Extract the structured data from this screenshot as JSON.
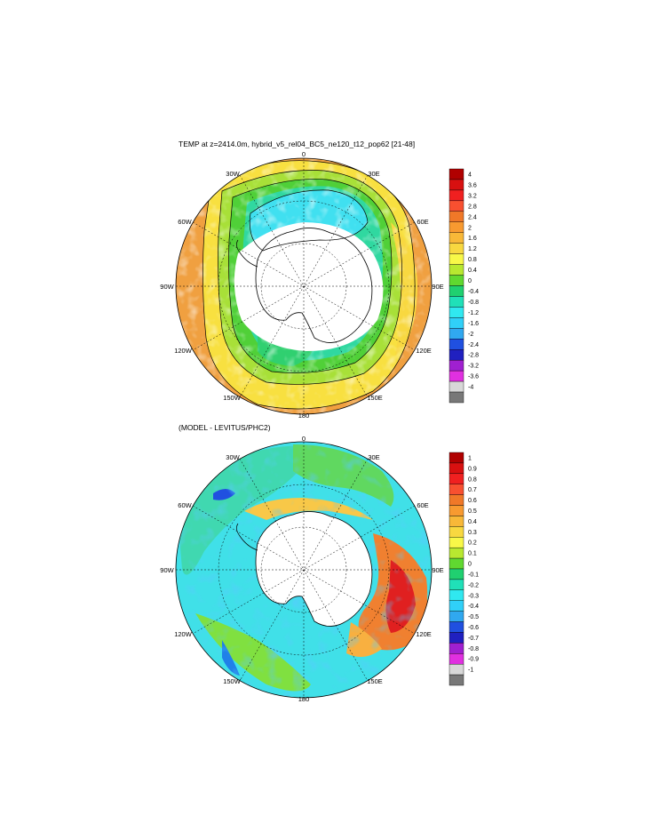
{
  "panels": [
    {
      "title": "TEMP at z=2414.0m, hybrid_v5_rel04_BC5_ne120_t12_pop62 [21-48]",
      "lon_labels": {
        "top": "0",
        "top_left": "30W",
        "top_right": "30E",
        "left_upper": "60W",
        "right_upper": "60E",
        "left": "90W",
        "right": "90E",
        "left_lower": "120W",
        "right_lower": "120E",
        "bottom_left": "150W",
        "bottom_right": "150E",
        "bottom": "180"
      },
      "colorbar": {
        "labels": [
          "4",
          "3.6",
          "3.2",
          "2.8",
          "2.4",
          "2",
          "1.6",
          "1.2",
          "0.8",
          "0.4",
          "0",
          "-0.4",
          "-0.8",
          "-1.2",
          "-1.6",
          "-2",
          "-2.4",
          "-2.8",
          "-3.2",
          "-3.6",
          "-4"
        ],
        "colors": [
          "#b00000",
          "#d81010",
          "#f02020",
          "#f85030",
          "#f07828",
          "#f89a30",
          "#f8b838",
          "#f8d840",
          "#f8f848",
          "#b8e830",
          "#60d830",
          "#20d070",
          "#20e0b8",
          "#30e8f0",
          "#30d0f8",
          "#30a8f0",
          "#2050e0",
          "#2020c0",
          "#a020d0",
          "#e030e0",
          "#d8d8d8",
          "#787878"
        ]
      }
    },
    {
      "title": "(MODEL - LEVITUS/PHC2)",
      "lon_labels": {
        "top": "0",
        "top_left": "30W",
        "top_right": "30E",
        "left_upper": "60W",
        "right_upper": "60E",
        "left": "90W",
        "right": "90E",
        "left_lower": "120W",
        "right_lower": "120E",
        "bottom_left": "150W",
        "bottom_right": "150E",
        "bottom": "180"
      },
      "colorbar": {
        "labels": [
          "1",
          "0.9",
          "0.8",
          "0.7",
          "0.6",
          "0.5",
          "0.4",
          "0.3",
          "0.2",
          "0.1",
          "0",
          "-0.1",
          "-0.2",
          "-0.3",
          "-0.4",
          "-0.5",
          "-0.6",
          "-0.7",
          "-0.8",
          "-0.9",
          "-1"
        ],
        "colors": [
          "#b00000",
          "#d81010",
          "#f02020",
          "#f85030",
          "#f07828",
          "#f89a30",
          "#f8b838",
          "#f8d840",
          "#f8f848",
          "#b8e830",
          "#60d830",
          "#20d070",
          "#20e0b8",
          "#30e8f0",
          "#30d0f8",
          "#30a8f0",
          "#2050e0",
          "#2020c0",
          "#a020d0",
          "#e030e0",
          "#d8d8d8",
          "#787878"
        ]
      }
    }
  ]
}
